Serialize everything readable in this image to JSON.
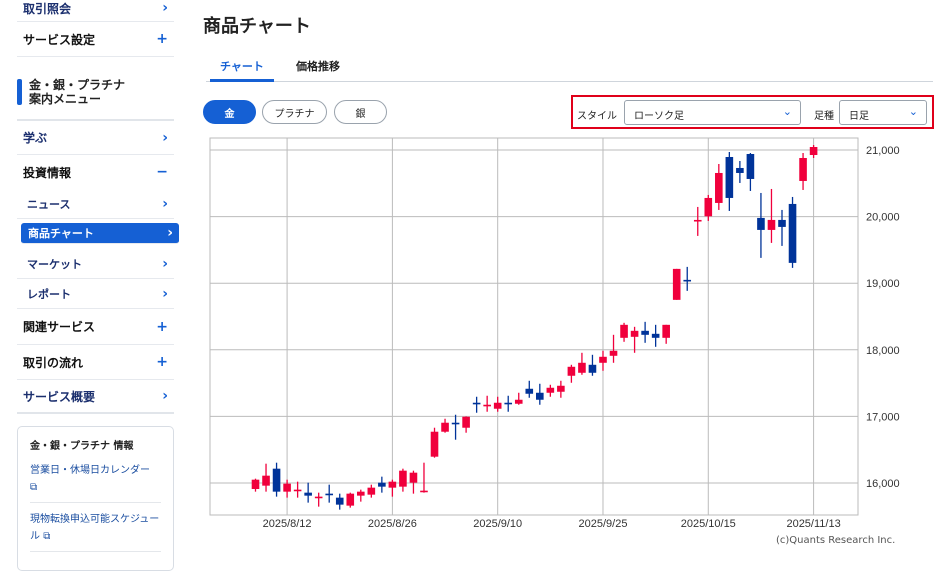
{
  "sidebar": {
    "items_top": [
      {
        "label": "取引照会",
        "icon": "chevron-right"
      },
      {
        "label": "サービス設定",
        "icon": "plus"
      }
    ],
    "menu_title": "金・銀・プラチナ\n案内メニュー",
    "menu_title_l1": "金・銀・プラチナ",
    "menu_title_l2": "案内メニュー",
    "learn": "学ぶ",
    "invest": "投資情報",
    "sub": [
      {
        "label": "ニュース"
      },
      {
        "label": "商品チャート",
        "active": true
      },
      {
        "label": "マーケット"
      },
      {
        "label": "レポート"
      }
    ],
    "related": "関連サービス",
    "flow": "取引の流れ",
    "overview": "サービス概要",
    "info": {
      "title": "金・銀・プラチナ 情報",
      "links": [
        "営業日・休場日カレンダー",
        "現物転換申込可能スケジュール"
      ]
    }
  },
  "header": {
    "title": "商品チャート"
  },
  "tabs": [
    {
      "label": "チャート",
      "active": true
    },
    {
      "label": "価格推移"
    }
  ],
  "metals": [
    {
      "label": "金",
      "active": true
    },
    {
      "label": "プラチナ"
    },
    {
      "label": "銀"
    }
  ],
  "controls": {
    "style_label": "スタイル",
    "style_value": "ローソク足",
    "period_label": "足種",
    "period_value": "日足",
    "highlight_color": "#e0001a"
  },
  "copyright": "(c)Quants Research Inc.",
  "chart_data": {
    "type": "candlestick",
    "up_color": "#f0003c",
    "down_color": "#003399",
    "ylim": [
      15500,
      21200
    ],
    "yticks": [
      16000,
      17000,
      18000,
      19000,
      20000,
      21000
    ],
    "ytick_labels": [
      "16,000",
      "17,000",
      "18,000",
      "19,000",
      "20,000",
      "21,000"
    ],
    "xticks": [
      {
        "label": "2025/8/12",
        "index": 3
      },
      {
        "label": "2025/8/26",
        "index": 13
      },
      {
        "label": "2025/9/10",
        "index": 23
      },
      {
        "label": "2025/9/25",
        "index": 33
      },
      {
        "label": "2025/10/15",
        "index": 43
      },
      {
        "label": "2025/11/13",
        "index": 53
      }
    ],
    "grid": true,
    "y_axis": "right",
    "ohlc": [
      [
        15910,
        16065,
        15870,
        16050
      ],
      [
        15960,
        16290,
        15870,
        16110
      ],
      [
        16215,
        16305,
        15795,
        15870
      ],
      [
        15870,
        16050,
        15780,
        15990
      ],
      [
        15885,
        16020,
        15780,
        15900
      ],
      [
        15855,
        16005,
        15705,
        15810
      ],
      [
        15780,
        15855,
        15645,
        15795
      ],
      [
        15840,
        15975,
        15705,
        15825
      ],
      [
        15780,
        15840,
        15600,
        15675
      ],
      [
        15660,
        15855,
        15630,
        15840
      ],
      [
        15810,
        15900,
        15720,
        15870
      ],
      [
        15825,
        15975,
        15780,
        15930
      ],
      [
        16005,
        16095,
        15855,
        15945
      ],
      [
        15930,
        16050,
        15795,
        16020
      ],
      [
        15945,
        16215,
        15870,
        16185
      ],
      [
        16005,
        16185,
        15840,
        16155
      ],
      [
        15870,
        16305,
        15855,
        15885
      ],
      [
        16395,
        16830,
        16380,
        16770
      ],
      [
        16770,
        16965,
        16755,
        16905
      ],
      [
        16905,
        17025,
        16650,
        16890
      ],
      [
        16830,
        17000,
        16755,
        16995
      ],
      [
        17205,
        17295,
        17055,
        17190
      ],
      [
        17160,
        17310,
        17070,
        17175
      ],
      [
        17115,
        17295,
        17070,
        17205
      ],
      [
        17205,
        17310,
        17070,
        17190
      ],
      [
        17190,
        17355,
        17175,
        17250
      ],
      [
        17415,
        17535,
        17280,
        17340
      ],
      [
        17355,
        17490,
        17175,
        17250
      ],
      [
        17355,
        17475,
        17295,
        17430
      ],
      [
        17370,
        17535,
        17280,
        17460
      ],
      [
        17610,
        17775,
        17505,
        17745
      ],
      [
        17655,
        17955,
        17625,
        17805
      ],
      [
        17775,
        17925,
        17610,
        17655
      ],
      [
        17805,
        17985,
        17685,
        17895
      ],
      [
        17910,
        18225,
        17805,
        17985
      ],
      [
        18180,
        18405,
        18120,
        18375
      ],
      [
        18195,
        18345,
        17955,
        18285
      ],
      [
        18285,
        18420,
        18105,
        18225
      ],
      [
        18240,
        18375,
        18045,
        18180
      ],
      [
        18180,
        18375,
        18090,
        18375
      ],
      [
        18750,
        19215,
        18750,
        19215
      ],
      [
        19050,
        19245,
        18885,
        19035
      ],
      [
        19935,
        20145,
        19710,
        19950
      ],
      [
        20005,
        20325,
        19935,
        20280
      ],
      [
        20205,
        20790,
        20100,
        20655
      ],
      [
        20895,
        20970,
        20085,
        20280
      ],
      [
        20730,
        20835,
        20505,
        20655
      ],
      [
        20940,
        20955,
        20385,
        20565
      ],
      [
        19980,
        20355,
        19380,
        19800
      ],
      [
        19800,
        20415,
        19605,
        19950
      ],
      [
        19950,
        20100,
        19560,
        19845
      ],
      [
        20190,
        20295,
        19230,
        19305
      ],
      [
        20535,
        20955,
        20400,
        20880
      ],
      [
        20925,
        21075,
        20880,
        21045
      ]
    ]
  }
}
